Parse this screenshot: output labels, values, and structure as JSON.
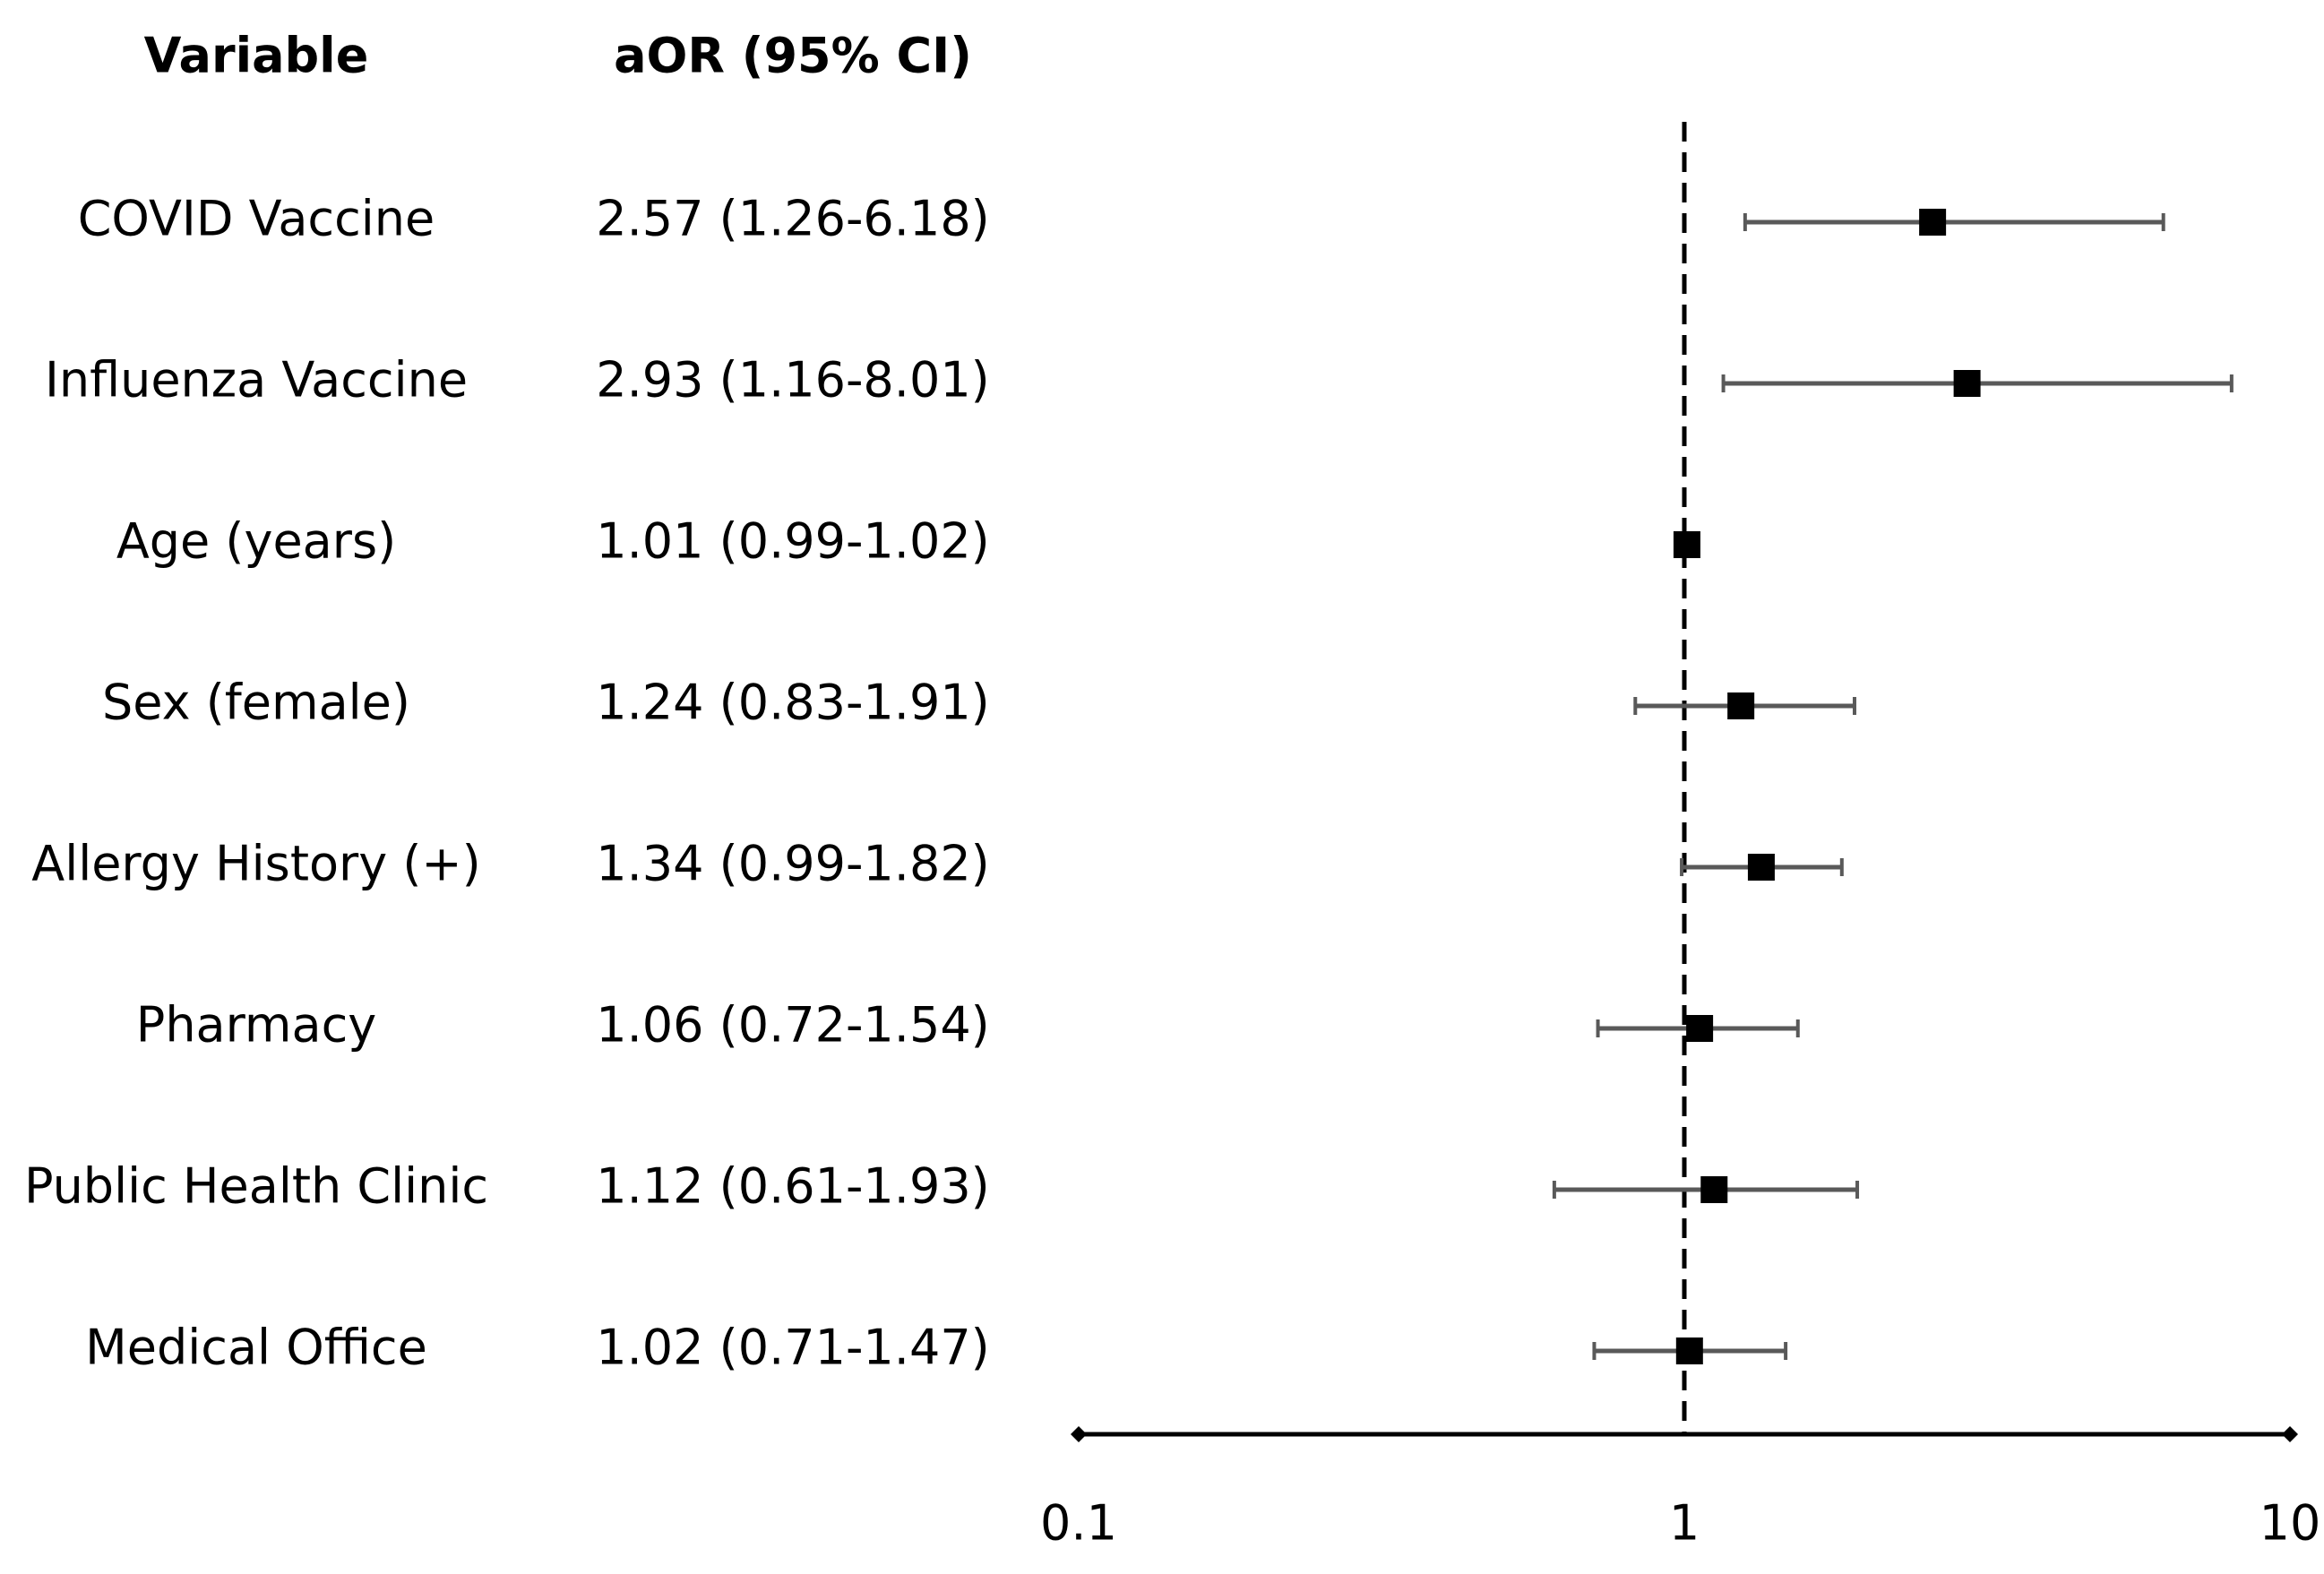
{
  "chart_data": {
    "type": "forest",
    "column_headers": [
      "Variable",
      "aOR (95% CI)"
    ],
    "categories": [
      "COVID Vaccine",
      "Influenza Vaccine",
      "Age (years)",
      "Sex (female)",
      "Allergy History (+)",
      "Pharmacy",
      "Public Health Clinic",
      "Medical Office"
    ],
    "values": [
      2.57,
      2.93,
      1.01,
      1.24,
      1.34,
      1.06,
      1.12,
      1.02
    ],
    "lower": [
      1.26,
      1.16,
      0.99,
      0.83,
      0.99,
      0.72,
      0.61,
      0.71
    ],
    "upper": [
      6.18,
      8.01,
      1.02,
      1.91,
      1.82,
      1.54,
      1.93,
      1.47
    ],
    "value_labels": [
      "2.57 (1.26-6.18)",
      "2.93 (1.16-8.01)",
      "1.01 (0.99-1.02)",
      "1.24 (0.83-1.91)",
      "1.34 (0.99-1.82)",
      "1.06 (0.72-1.54)",
      "1.12 (0.61-1.93)",
      "1.02 (0.71-1.47)"
    ],
    "color": "#000000",
    "whisker_color": "#595959",
    "xscale": "log",
    "xlim": [
      0.1,
      10
    ],
    "xticks": [
      0.1,
      1,
      10
    ],
    "reference_line": 1
  }
}
